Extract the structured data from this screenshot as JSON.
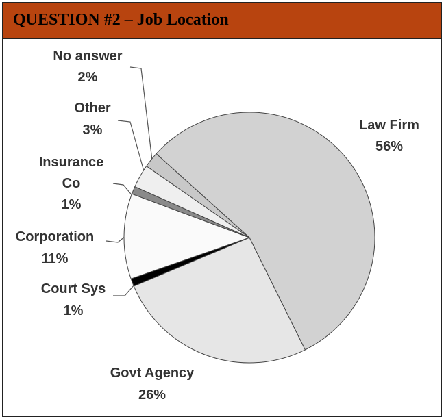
{
  "chart_data": {
    "type": "pie",
    "title": "QUESTION #2 – Job Location",
    "categories": [
      "Law Firm",
      "Govt Agency",
      "Court Sys",
      "Corporation",
      "Insurance Co",
      "Other",
      "No answer"
    ],
    "values": [
      56,
      26,
      1,
      11,
      1,
      3,
      2
    ],
    "value_labels": [
      "56%",
      "26%",
      "1%",
      "11%",
      "1%",
      "3%",
      "2%"
    ],
    "colors": [
      "#d2d2d2",
      "#e6e6e6",
      "#000000",
      "#fafafa",
      "#8a8a8a",
      "#efefef",
      "#c8c8c8"
    ]
  }
}
